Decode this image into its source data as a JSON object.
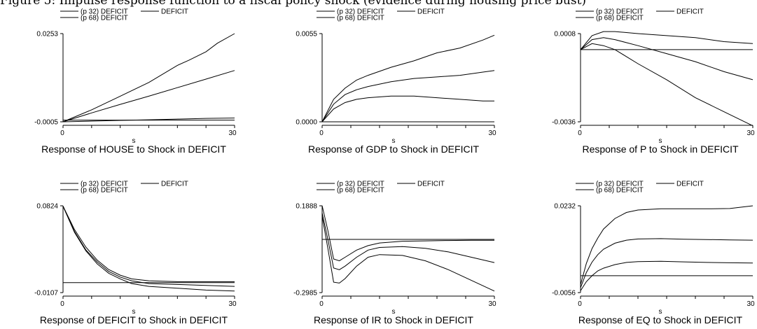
{
  "figure": {
    "caption": "Figure 5: Impulse response function to a fiscal policy shock (evidence during housing price bust)"
  },
  "chart_data": [
    {
      "type": "line",
      "title": "Response of HOUSE to Shock in DEFICIT",
      "xlabel": "s",
      "legend": [
        "(p 32) DEFICIT",
        "DEFICIT",
        "(p 68) DEFICIT"
      ],
      "x_ticks": [
        "0",
        "30"
      ],
      "y_ticks": [
        "0.0253",
        "-0.0005"
      ],
      "xlim": [
        0,
        30
      ],
      "ylim": [
        -0.0005,
        0.0253
      ],
      "series": [
        {
          "name": "(p 32) DEFICIT",
          "x": [
            0,
            5,
            10,
            15,
            20,
            25,
            30
          ],
          "y": [
            -0.0005,
            -0.0003,
            -0.0001,
            0.0001,
            0.0003,
            0.0005,
            0.0006
          ]
        },
        {
          "name": "DEFICIT",
          "x": [
            0,
            5,
            10,
            15,
            20,
            25,
            30
          ],
          "y": [
            -0.0005,
            0.0021,
            0.0046,
            0.007,
            0.0095,
            0.012,
            0.0145
          ]
        },
        {
          "name": "(p 68) DEFICIT",
          "x": [
            0,
            5,
            10,
            15,
            20,
            22,
            25,
            27,
            30
          ],
          "y": [
            -0.0005,
            0.003,
            0.007,
            0.011,
            0.016,
            0.0175,
            0.02,
            0.0225,
            0.0253
          ]
        },
        {
          "name": "",
          "x": [
            0,
            30
          ],
          "y": [
            0,
            0
          ]
        }
      ]
    },
    {
      "type": "line",
      "title": "Response of GDP to Shock in DEFICIT",
      "xlabel": "s",
      "legend": [
        "(p 32) DEFICIT",
        "DEFICIT",
        "(p 68) DEFICIT"
      ],
      "x_ticks": [
        "0",
        "30"
      ],
      "y_ticks": [
        "0.0055",
        "0.0000"
      ],
      "xlim": [
        0,
        30
      ],
      "ylim": [
        0,
        0.0055
      ],
      "series": [
        {
          "name": "(p 32) DEFICIT",
          "x": [
            0,
            2,
            4,
            6,
            8,
            12,
            16,
            20,
            24,
            28,
            30
          ],
          "y": [
            0,
            0.0008,
            0.0012,
            0.0014,
            0.0015,
            0.0016,
            0.0016,
            0.0015,
            0.0014,
            0.0013,
            0.0013
          ]
        },
        {
          "name": "DEFICIT",
          "x": [
            0,
            2,
            4,
            6,
            8,
            12,
            16,
            20,
            24,
            28,
            30
          ],
          "y": [
            0,
            0.0011,
            0.0017,
            0.002,
            0.0022,
            0.0025,
            0.0027,
            0.0028,
            0.0029,
            0.0031,
            0.0032
          ]
        },
        {
          "name": "(p 68) DEFICIT",
          "x": [
            0,
            2,
            4,
            6,
            8,
            12,
            16,
            20,
            24,
            28,
            30
          ],
          "y": [
            0,
            0.0014,
            0.0021,
            0.0026,
            0.0029,
            0.0034,
            0.0038,
            0.0043,
            0.0046,
            0.0051,
            0.0054
          ]
        },
        {
          "name": "",
          "x": [
            0,
            30
          ],
          "y": [
            0,
            0
          ]
        }
      ]
    },
    {
      "type": "line",
      "title": "Response of P to Shock in DEFICIT",
      "xlabel": "s",
      "legend": [
        "(p 32) DEFICIT",
        "DEFICIT",
        "(p 68) DEFICIT"
      ],
      "x_ticks": [
        "0",
        "30"
      ],
      "y_ticks": [
        "0.0008",
        "-0.0036"
      ],
      "xlim": [
        0,
        30
      ],
      "ylim": [
        -0.0036,
        0.0008
      ],
      "series": [
        {
          "name": "(p 32) DEFICIT",
          "x": [
            0,
            2,
            4,
            6,
            10,
            15,
            20,
            25,
            30
          ],
          "y": [
            0,
            0.0003,
            0.0002,
            0,
            -0.0007,
            -0.0015,
            -0.0024,
            -0.0031,
            -0.0038
          ]
        },
        {
          "name": "DEFICIT",
          "x": [
            0,
            2,
            4,
            6,
            10,
            15,
            20,
            25,
            30
          ],
          "y": [
            0,
            0.0005,
            0.0006,
            0.0005,
            0.0002,
            -0.0002,
            -0.0006,
            -0.0011,
            -0.0015
          ]
        },
        {
          "name": "(p 68) DEFICIT",
          "x": [
            0,
            2,
            4,
            6,
            10,
            15,
            20,
            25,
            30
          ],
          "y": [
            0,
            0.0007,
            0.0009,
            0.0009,
            0.0008,
            0.0007,
            0.0006,
            0.0004,
            0.0003
          ]
        },
        {
          "name": "",
          "x": [
            0,
            30
          ],
          "y": [
            0,
            0
          ]
        }
      ]
    },
    {
      "type": "line",
      "title": "Response of DEFICIT to Shock in DEFICIT",
      "xlabel": "s",
      "legend": [
        "(p 32) DEFICIT",
        "DEFICIT",
        "(p 68) DEFICIT"
      ],
      "x_ticks": [
        "0",
        "30"
      ],
      "y_ticks": [
        "0.0824",
        "-0.0107"
      ],
      "xlim": [
        0,
        30
      ],
      "ylim": [
        -0.0107,
        0.0824
      ],
      "series": [
        {
          "name": "(p 32) DEFICIT",
          "x": [
            0,
            2,
            4,
            6,
            8,
            10,
            12,
            15,
            20,
            25,
            30
          ],
          "y": [
            0.082,
            0.054,
            0.034,
            0.02,
            0.01,
            0.004,
            -0.001,
            -0.004,
            -0.006,
            -0.008,
            -0.009
          ]
        },
        {
          "name": "DEFICIT",
          "x": [
            0,
            2,
            4,
            6,
            8,
            10,
            12,
            15,
            20,
            25,
            30
          ],
          "y": [
            0.082,
            0.055,
            0.035,
            0.022,
            0.012,
            0.006,
            0.002,
            -0.001,
            -0.002,
            -0.003,
            -0.004
          ]
        },
        {
          "name": "(p 68) DEFICIT",
          "x": [
            0,
            2,
            4,
            6,
            8,
            10,
            12,
            15,
            20,
            25,
            30
          ],
          "y": [
            0.082,
            0.057,
            0.038,
            0.024,
            0.014,
            0.008,
            0.004,
            0.002,
            0.001,
            0.001,
            0.001
          ]
        },
        {
          "name": "",
          "x": [
            0,
            30
          ],
          "y": [
            0,
            0
          ]
        }
      ]
    },
    {
      "type": "line",
      "title": "Response of IR to Shock in DEFICIT",
      "xlabel": "s",
      "legend": [
        "(p 32) DEFICIT",
        "DEFICIT",
        "(p 68) DEFICIT"
      ],
      "x_ticks": [
        "0",
        "30"
      ],
      "y_ticks": [
        "0.1888",
        "-0.2985"
      ],
      "xlim": [
        0,
        30
      ],
      "ylim": [
        -0.2985,
        0.1888
      ],
      "series": [
        {
          "name": "(p 32) DEFICIT",
          "x": [
            0,
            1,
            2,
            3,
            4,
            6,
            8,
            10,
            14,
            18,
            22,
            26,
            30
          ],
          "y": [
            0.13,
            -0.05,
            -0.24,
            -0.245,
            -0.22,
            -0.15,
            -0.1,
            -0.085,
            -0.09,
            -0.12,
            -0.17,
            -0.23,
            -0.29
          ]
        },
        {
          "name": "DEFICIT",
          "x": [
            0,
            1,
            2,
            3,
            4,
            6,
            8,
            10,
            14,
            18,
            22,
            26,
            30
          ],
          "y": [
            0.15,
            0,
            -0.16,
            -0.17,
            -0.15,
            -0.1,
            -0.06,
            -0.045,
            -0.04,
            -0.05,
            -0.07,
            -0.1,
            -0.13
          ]
        },
        {
          "name": "(p 68) DEFICIT",
          "x": [
            0,
            1,
            2,
            3,
            4,
            6,
            8,
            10,
            14,
            18,
            22,
            26,
            30
          ],
          "y": [
            0.19,
            0.05,
            -0.11,
            -0.12,
            -0.1,
            -0.06,
            -0.035,
            -0.02,
            -0.01,
            -0.008,
            -0.006,
            -0.005,
            -0.005
          ]
        },
        {
          "name": "",
          "x": [
            0,
            30
          ],
          "y": [
            0,
            0
          ]
        }
      ]
    },
    {
      "type": "line",
      "title": "Response of EQ to Shock in DEFICIT",
      "xlabel": "s",
      "legend": [
        "(p 32) DEFICIT",
        "DEFICIT",
        "(p 68) DEFICIT"
      ],
      "x_ticks": [
        "0",
        "30"
      ],
      "y_ticks": [
        "0.0232",
        "-0.0056"
      ],
      "xlim": [
        0,
        30
      ],
      "ylim": [
        -0.0056,
        0.0232
      ],
      "series": [
        {
          "name": "(p 32) DEFICIT",
          "x": [
            0,
            1,
            2,
            3,
            4,
            6,
            8,
            10,
            14,
            18,
            22,
            26,
            30
          ],
          "y": [
            -0.005,
            -0.002,
            0,
            0.0016,
            0.0025,
            0.0037,
            0.0044,
            0.0047,
            0.0048,
            0.0046,
            0.0044,
            0.0043,
            0.0042
          ]
        },
        {
          "name": "DEFICIT",
          "x": [
            0,
            1,
            2,
            3,
            4,
            6,
            8,
            10,
            14,
            18,
            22,
            26,
            30
          ],
          "y": [
            -0.004,
            0.001,
            0.0045,
            0.007,
            0.0088,
            0.0108,
            0.0118,
            0.0122,
            0.0123,
            0.0121,
            0.012,
            0.0119,
            0.0118
          ]
        },
        {
          "name": "(p 68) DEFICIT",
          "x": [
            0,
            1,
            2,
            3,
            4,
            6,
            8,
            10,
            14,
            18,
            22,
            26,
            30
          ],
          "y": [
            -0.003,
            0.004,
            0.009,
            0.0125,
            0.0155,
            0.019,
            0.021,
            0.0218,
            0.0222,
            0.0222,
            0.0222,
            0.0223,
            0.0232
          ]
        },
        {
          "name": "",
          "x": [
            0,
            30
          ],
          "y": [
            0,
            0
          ]
        }
      ]
    }
  ]
}
